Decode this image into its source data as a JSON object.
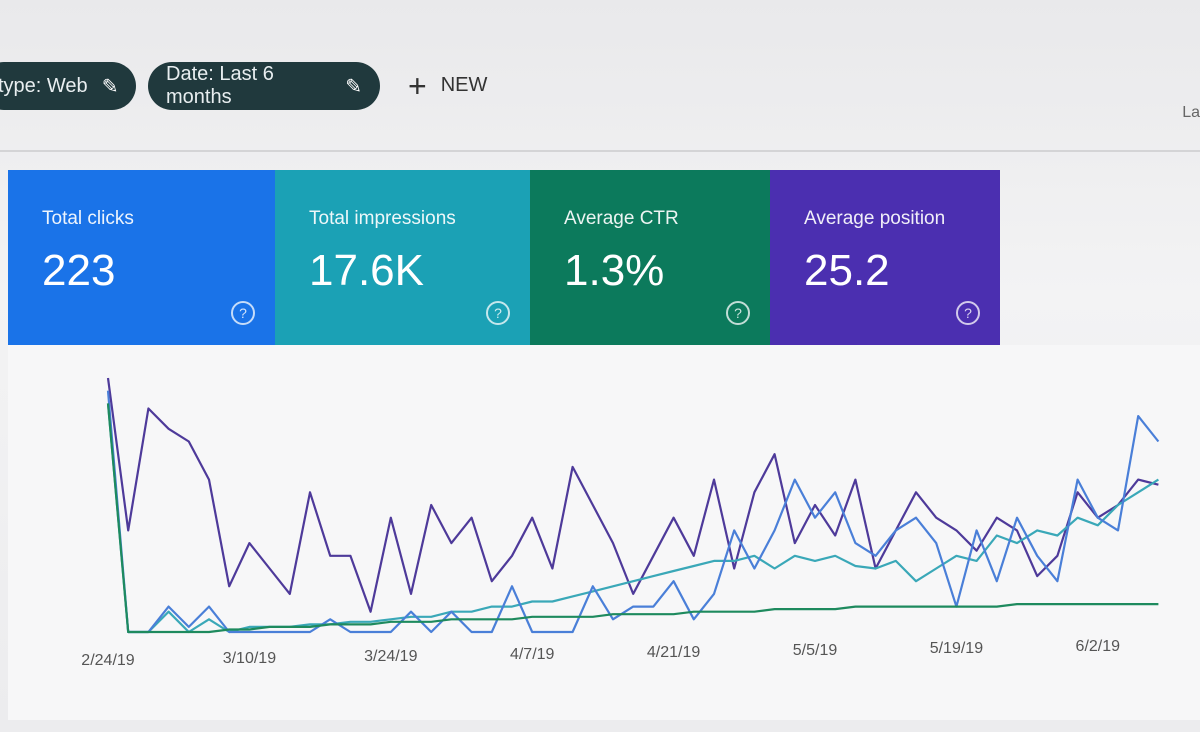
{
  "toolbar": {
    "filters": [
      {
        "label": "type: Web",
        "icon": "pencil-icon"
      },
      {
        "label": "Date: Last 6 months",
        "icon": "pencil-icon"
      }
    ],
    "new_label": "NEW",
    "new_icon": "plus-icon",
    "cutoff_text": "La"
  },
  "cards": [
    {
      "label": "Total clicks",
      "value": "223",
      "color": "#1a73e8",
      "line_color": "#4a7fd8"
    },
    {
      "label": "Total impressions",
      "value": "17.6K",
      "color": "#1ba1b5",
      "line_color": "#3aa8b8"
    },
    {
      "label": "Average CTR",
      "value": "1.3%",
      "color": "#0c7a5c",
      "line_color": "#1e8a5e"
    },
    {
      "label": "Average position",
      "value": "25.2",
      "color": "#4b2fb0",
      "line_color": "#4e3a9a"
    }
  ],
  "chart_data": {
    "type": "line",
    "x_tick_labels": [
      "2/24/19",
      "3/10/19",
      "3/24/19",
      "4/7/19",
      "4/21/19",
      "5/5/19",
      "5/19/19",
      "6/2/19"
    ],
    "x_step_days": 2,
    "y_scale": "relative (no y-axis printed)",
    "grid": false,
    "series": [
      {
        "metric": "Average position",
        "color": "#4e3a9a",
        "values": [
          100,
          40,
          88,
          80,
          75,
          60,
          18,
          35,
          25,
          15,
          55,
          30,
          30,
          8,
          45,
          15,
          50,
          35,
          45,
          20,
          30,
          45,
          25,
          65,
          50,
          35,
          15,
          30,
          45,
          30,
          60,
          25,
          55,
          70,
          35,
          50,
          38,
          60,
          25,
          40,
          55,
          45,
          40,
          32,
          45,
          40,
          22,
          30,
          55,
          45,
          50,
          60,
          58
        ]
      },
      {
        "metric": "Total impressions",
        "color": "#3aa8b8",
        "values": [
          90,
          0,
          0,
          8,
          0,
          5,
          0,
          2,
          2,
          2,
          3,
          3,
          4,
          4,
          5,
          6,
          6,
          8,
          8,
          10,
          10,
          12,
          12,
          14,
          16,
          18,
          20,
          22,
          24,
          26,
          28,
          28,
          30,
          25,
          30,
          28,
          30,
          26,
          25,
          28,
          20,
          25,
          30,
          28,
          38,
          35,
          40,
          38,
          45,
          42,
          50,
          55,
          60
        ]
      },
      {
        "metric": "Total clicks",
        "color": "#4a7fd8",
        "values": [
          95,
          0,
          0,
          10,
          2,
          10,
          0,
          0,
          0,
          0,
          0,
          5,
          0,
          0,
          0,
          8,
          0,
          8,
          0,
          0,
          18,
          0,
          0,
          0,
          18,
          5,
          10,
          10,
          20,
          5,
          15,
          40,
          25,
          40,
          60,
          45,
          55,
          35,
          30,
          40,
          45,
          35,
          10,
          40,
          20,
          45,
          30,
          20,
          60,
          45,
          40,
          85,
          75
        ]
      },
      {
        "metric": "Average CTR",
        "color": "#1e8a5e",
        "values": [
          90,
          0,
          0,
          0,
          0,
          0,
          1,
          1,
          2,
          2,
          2,
          3,
          3,
          3,
          4,
          4,
          4,
          5,
          5,
          5,
          5,
          6,
          6,
          6,
          6,
          7,
          7,
          7,
          7,
          8,
          8,
          8,
          8,
          9,
          9,
          9,
          9,
          10,
          10,
          10,
          10,
          10,
          10,
          10,
          10,
          11,
          11,
          11,
          11,
          11,
          11,
          11,
          11
        ]
      }
    ]
  }
}
